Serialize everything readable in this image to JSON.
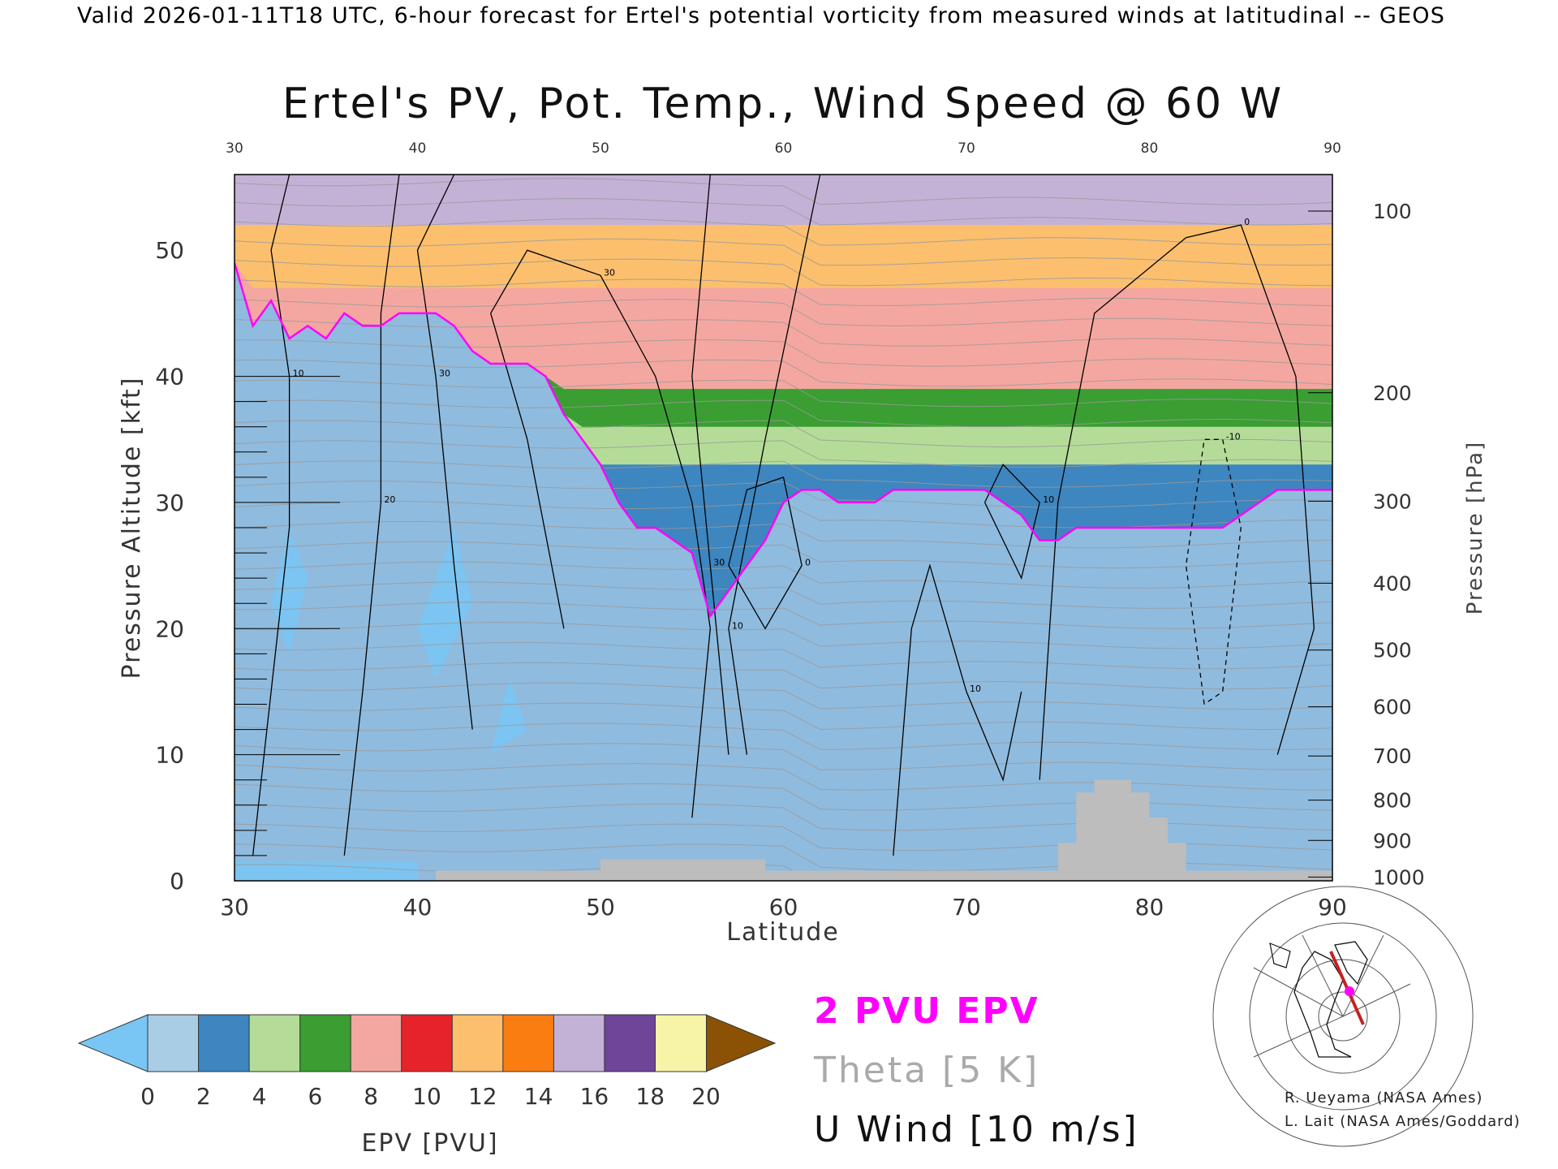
{
  "header": "Valid 2026-01-11T18 UTC, 6-hour forecast for Ertel's potential vorticity from measured winds at latitudinal -- GEOS",
  "chart_data": {
    "type": "heatmap",
    "title": "Ertel's PV, Pot. Temp., Wind Speed @ 60 W",
    "xlabel": "Latitude",
    "ylabel": "Pressure Altitude [kft]",
    "y2label": "Pressure [hPa]",
    "xlim": [
      30,
      90
    ],
    "ylim": [
      0,
      56
    ],
    "x_ticks": [
      "30",
      "40",
      "50",
      "60",
      "70",
      "80",
      "90"
    ],
    "y_ticks": [
      "0",
      "10",
      "20",
      "30",
      "40",
      "50"
    ],
    "pressure_ticks": [
      {
        "label": "100",
        "kft": 53.1
      },
      {
        "label": "200",
        "kft": 38.7
      },
      {
        "label": "300",
        "kft": 30.1
      },
      {
        "label": "400",
        "kft": 23.6
      },
      {
        "label": "500",
        "kft": 18.3
      },
      {
        "label": "600",
        "kft": 13.8
      },
      {
        "label": "700",
        "kft": 9.9
      },
      {
        "label": "800",
        "kft": 6.4
      },
      {
        "label": "900",
        "kft": 3.2
      },
      {
        "label": "1000",
        "kft": 0.3
      }
    ],
    "tropopause_2pvu": [
      [
        30,
        49
      ],
      [
        31,
        44
      ],
      [
        32,
        46
      ],
      [
        33,
        43
      ],
      [
        34,
        44
      ],
      [
        35,
        43
      ],
      [
        36,
        45
      ],
      [
        37,
        44
      ],
      [
        38,
        44
      ],
      [
        39,
        45
      ],
      [
        40,
        45
      ],
      [
        41,
        45
      ],
      [
        42,
        44
      ],
      [
        43,
        42
      ],
      [
        44,
        41
      ],
      [
        45,
        41
      ],
      [
        46,
        41
      ],
      [
        47,
        40
      ],
      [
        48,
        37
      ],
      [
        49,
        35
      ],
      [
        50,
        33
      ],
      [
        51,
        30
      ],
      [
        52,
        28
      ],
      [
        53,
        28
      ],
      [
        54,
        27
      ],
      [
        55,
        26
      ],
      [
        56,
        21
      ],
      [
        57,
        23
      ],
      [
        58,
        25
      ],
      [
        59,
        27
      ],
      [
        60,
        30
      ],
      [
        61,
        31
      ],
      [
        62,
        31
      ],
      [
        63,
        30
      ],
      [
        64,
        30
      ],
      [
        65,
        30
      ],
      [
        66,
        31
      ],
      [
        67,
        31
      ],
      [
        68,
        31
      ],
      [
        69,
        31
      ],
      [
        70,
        31
      ],
      [
        71,
        31
      ],
      [
        72,
        30
      ],
      [
        73,
        29
      ],
      [
        74,
        27
      ],
      [
        75,
        27
      ],
      [
        76,
        28
      ],
      [
        77,
        28
      ],
      [
        78,
        28
      ],
      [
        79,
        28
      ],
      [
        80,
        28
      ],
      [
        81,
        28
      ],
      [
        82,
        28
      ],
      [
        83,
        28
      ],
      [
        84,
        28
      ],
      [
        85,
        29
      ],
      [
        86,
        30
      ],
      [
        87,
        31
      ],
      [
        88,
        31
      ],
      [
        89,
        31
      ],
      [
        90,
        31
      ]
    ],
    "regimes": [
      {
        "name": "stratosphere",
        "top": 56,
        "layers": [
          {
            "pvu": 16,
            "min": 52
          },
          {
            "pvu": 12.5,
            "min": 47
          },
          {
            "pvu": 9,
            "min": 39
          },
          {
            "pvu": 7,
            "min": 36
          },
          {
            "pvu": 4.8,
            "min": 33
          },
          {
            "pvu": 3.3,
            "min": 0
          }
        ]
      }
    ],
    "u_wind_isotachs": [
      {
        "label": "10",
        "points": [
          [
            31,
            2
          ],
          [
            32,
            15
          ],
          [
            33,
            28
          ],
          [
            33,
            40
          ],
          [
            32,
            50
          ],
          [
            33,
            56
          ]
        ]
      },
      {
        "label": "20",
        "points": [
          [
            36,
            2
          ],
          [
            37,
            15
          ],
          [
            38,
            30
          ],
          [
            38,
            45
          ],
          [
            39,
            56
          ]
        ]
      },
      {
        "label": "30",
        "points": [
          [
            43,
            12
          ],
          [
            42,
            25
          ],
          [
            41,
            40
          ],
          [
            40,
            50
          ],
          [
            42,
            56
          ]
        ]
      },
      {
        "label": "30",
        "points": [
          [
            48,
            20
          ],
          [
            46,
            35
          ],
          [
            44,
            45
          ],
          [
            46,
            50
          ],
          [
            50,
            48
          ],
          [
            53,
            40
          ],
          [
            55,
            30
          ],
          [
            56,
            20
          ],
          [
            55,
            5
          ]
        ]
      },
      {
        "label": "30",
        "points": [
          [
            56,
            56
          ],
          [
            55,
            40
          ],
          [
            56,
            25
          ],
          [
            57,
            10
          ]
        ]
      },
      {
        "label": "10",
        "points": [
          [
            62,
            56
          ],
          [
            59,
            35
          ],
          [
            57,
            20
          ],
          [
            58,
            10
          ]
        ]
      },
      {
        "label": "0",
        "points": [
          [
            57,
            25
          ],
          [
            58,
            31
          ],
          [
            60,
            32
          ],
          [
            61,
            25
          ],
          [
            59,
            20
          ],
          [
            57,
            25
          ]
        ]
      },
      {
        "label": "10",
        "points": [
          [
            66,
            2
          ],
          [
            67,
            20
          ],
          [
            68,
            25
          ],
          [
            70,
            15
          ],
          [
            72,
            8
          ],
          [
            73,
            15
          ]
        ]
      },
      {
        "label": "10",
        "points": [
          [
            71,
            30
          ],
          [
            72,
            33
          ],
          [
            74,
            30
          ],
          [
            73,
            24
          ],
          [
            71,
            30
          ]
        ]
      },
      {
        "label": "0",
        "points": [
          [
            74,
            8
          ],
          [
            75,
            30
          ],
          [
            77,
            45
          ],
          [
            82,
            51
          ],
          [
            85,
            52
          ],
          [
            88,
            40
          ],
          [
            89,
            20
          ],
          [
            87,
            10
          ]
        ]
      },
      {
        "label": "-10",
        "points": [
          [
            83,
            14
          ],
          [
            82,
            25
          ],
          [
            83,
            35
          ],
          [
            84,
            35
          ],
          [
            85,
            28
          ],
          [
            84,
            15
          ],
          [
            83,
            14
          ]
        ]
      }
    ],
    "theta_contours_k": [
      270,
      275,
      280,
      285,
      290,
      295,
      300,
      305,
      310,
      315,
      320,
      325,
      330,
      335,
      340,
      345,
      350,
      355,
      360,
      365,
      370,
      375,
      380,
      385,
      390,
      395,
      400,
      405,
      410,
      415,
      420,
      425,
      430,
      435,
      440
    ],
    "topography": [
      [
        41,
        0
      ],
      [
        41,
        0.8
      ],
      [
        50,
        0.8
      ],
      [
        50,
        1.7
      ],
      [
        59,
        1.7
      ],
      [
        59,
        0.8
      ],
      [
        75,
        0.8
      ],
      [
        75,
        3
      ],
      [
        76,
        3
      ],
      [
        76,
        7
      ],
      [
        77,
        7
      ],
      [
        77,
        8
      ],
      [
        79,
        8
      ],
      [
        79,
        7
      ],
      [
        80,
        7
      ],
      [
        80,
        5
      ],
      [
        81,
        5
      ],
      [
        81,
        3
      ],
      [
        82,
        3
      ],
      [
        82,
        0.8
      ],
      [
        90,
        0.8
      ],
      [
        90,
        0
      ]
    ]
  },
  "colorbar": {
    "label": "EPV [PVU]",
    "ticks": [
      "0",
      "2",
      "4",
      "6",
      "8",
      "10",
      "12",
      "14",
      "16",
      "18",
      "20"
    ],
    "under_color": "#79c6f5",
    "over_color": "#8b5206",
    "colors": [
      "#aacde6",
      "#3d86c0",
      "#b4dc98",
      "#3a9e32",
      "#f4a7a0",
      "#e6232b",
      "#fbbf6e",
      "#fa7d12",
      "#c3b2d6",
      "#6e4598",
      "#f7f4a8"
    ]
  },
  "legend": {
    "epv": "2 PVU EPV",
    "theta": "Theta [5 K]",
    "uwind": "U Wind [10 m/s]",
    "epv_color": "#ff00ff",
    "theta_color": "#aaaaaa",
    "uwind_color": "#000000"
  },
  "credits": {
    "line1": "R. Ueyama (NASA Ames)",
    "line2": "L. Lait (NASA Ames/Goddard)"
  }
}
